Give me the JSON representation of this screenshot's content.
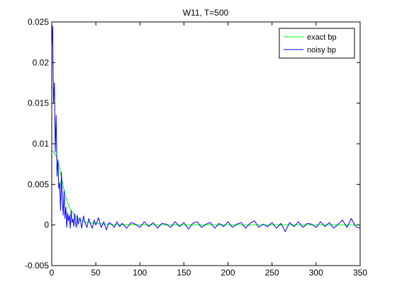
{
  "chart_data": {
    "type": "line",
    "title": "W11, T=500",
    "xlabel": "",
    "ylabel": "",
    "xlim": [
      0,
      350
    ],
    "ylim": [
      -0.005,
      0.025
    ],
    "xticks": [
      0,
      50,
      100,
      150,
      200,
      250,
      300,
      350
    ],
    "yticks": [
      -0.005,
      0,
      0.005,
      0.01,
      0.015,
      0.02,
      0.025
    ],
    "xtick_labels": [
      "0",
      "50",
      "100",
      "150",
      "200",
      "250",
      "300",
      "350"
    ],
    "ytick_labels": [
      "-0.005",
      "0",
      "0.005",
      "0.01",
      "0.015",
      "0.02",
      "0.025"
    ],
    "grid": false,
    "legend_position": "top-right",
    "series": [
      {
        "name": "exact bp",
        "color": "#00ff00",
        "x": [
          0,
          2,
          4,
          6,
          8,
          10,
          12,
          14,
          16,
          18,
          20,
          25,
          30,
          35,
          40,
          50,
          60,
          70,
          80,
          100,
          150,
          200,
          250,
          300,
          350
        ],
        "y": [
          0.0092,
          0.009,
          0.0087,
          0.0082,
          0.0075,
          0.0064,
          0.0053,
          0.0043,
          0.0034,
          0.0027,
          0.0021,
          0.0013,
          0.0008,
          0.0005,
          0.0003,
          0.0002,
          0.0001,
          5e-05,
          2e-05,
          0,
          0,
          0,
          0,
          0,
          0
        ]
      },
      {
        "name": "noisy bp",
        "color": "#0000ff",
        "x": [
          0,
          1,
          2,
          3,
          4,
          5,
          6,
          7,
          8,
          9,
          10,
          11,
          12,
          13,
          14,
          15,
          16,
          17,
          18,
          19,
          20,
          21,
          22,
          23,
          24,
          25,
          26,
          27,
          28,
          29,
          30,
          32,
          34,
          36,
          38,
          40,
          42,
          44,
          46,
          48,
          50,
          53,
          56,
          59,
          62,
          65,
          68,
          71,
          74,
          77,
          80,
          85,
          90,
          95,
          100,
          105,
          110,
          115,
          120,
          125,
          130,
          135,
          140,
          145,
          150,
          155,
          160,
          165,
          170,
          175,
          180,
          185,
          190,
          195,
          200,
          205,
          210,
          215,
          220,
          225,
          230,
          235,
          240,
          245,
          250,
          255,
          260,
          265,
          270,
          275,
          280,
          285,
          290,
          295,
          300,
          305,
          310,
          315,
          320,
          325,
          330,
          335,
          340,
          345,
          350
        ],
        "y": [
          0.022,
          0.0245,
          0.015,
          0.0175,
          0.009,
          0.0135,
          0.006,
          0.008,
          0.0045,
          0.0052,
          0.0018,
          0.0065,
          0.003,
          0.0012,
          0.0042,
          0.0008,
          0.0022,
          -0.0003,
          0.0015,
          0.0005,
          0.0012,
          -0.0004,
          0.0018,
          0.0003,
          0.0007,
          -0.0002,
          0.0014,
          0.0002,
          -0.0003,
          0.0012,
          0.0001,
          0.0009,
          -0.0004,
          0.0011,
          0.0002,
          -0.0003,
          0.0008,
          0.0001,
          -0.0004,
          0.0006,
          0.0,
          0.0009,
          -0.0003,
          0.0004,
          -0.0006,
          0.0003,
          0.0001,
          -0.0003,
          0.0004,
          -0.0002,
          0.0002,
          -0.0004,
          0.0003,
          0.0001,
          -0.0003,
          0.0004,
          -0.0002,
          0.0003,
          -0.0004,
          0.0002,
          0.0001,
          -0.0003,
          0.0004,
          -0.0002,
          0.0003,
          -0.0005,
          0.0002,
          0.0004,
          -0.0003,
          0.0001,
          0.0003,
          -0.0004,
          0.0002,
          -0.0002,
          0.0004,
          -0.0003,
          0.0001,
          0.0003,
          -0.0004,
          0.0002,
          0.0005,
          -0.0003,
          0.0001,
          -0.0002,
          0.0003,
          -0.0004,
          0.0002,
          -0.0008,
          0.0003,
          -0.0002,
          0.0004,
          -0.0003,
          0.0002,
          0.0001,
          -0.0003,
          0.0004,
          -0.0002,
          0.0003,
          -0.0004,
          0.0001,
          0.0006,
          -0.0003,
          0.0008,
          -0.0002,
          -0.0004
        ]
      }
    ]
  }
}
